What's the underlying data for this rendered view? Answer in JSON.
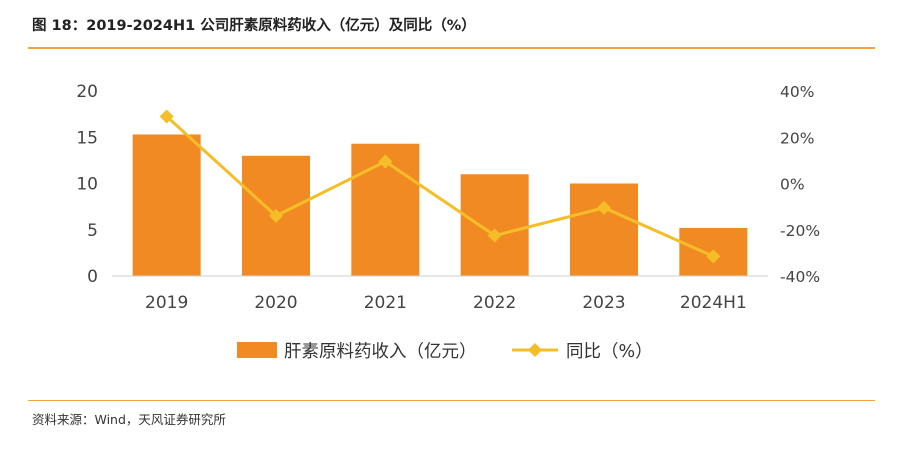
{
  "header": {
    "title": "图 18：2019-2024H1 公司肝素原料药收入（亿元）及同比（%）"
  },
  "footer": {
    "source": "资料来源：Wind，天风证券研究所"
  },
  "colors": {
    "bar": "#f28a23",
    "line": "#f5be28",
    "rule": "#f2a33c"
  },
  "chart_data": {
    "type": "bar",
    "categories": [
      "2019",
      "2020",
      "2021",
      "2022",
      "2023",
      "2024H1"
    ],
    "series": [
      {
        "name": "肝素原料药收入（亿元）",
        "type": "bar",
        "axis": "left",
        "values": [
          15.3,
          13.0,
          14.3,
          11.0,
          10.0,
          5.2
        ]
      },
      {
        "name": "同比（%）",
        "type": "line",
        "axis": "right",
        "values": [
          29,
          -14,
          9.5,
          -22.5,
          -10.5,
          -31.5
        ]
      }
    ],
    "y_left": {
      "ylim": [
        0,
        20
      ],
      "ticks": [
        0,
        5,
        10,
        15,
        20
      ],
      "tick_labels": [
        "0",
        "5",
        "10",
        "15",
        "20"
      ]
    },
    "y_right": {
      "ylim": [
        -40,
        40
      ],
      "ticks": [
        -40,
        -20,
        0,
        20,
        40
      ],
      "tick_labels": [
        "-40%",
        "-20%",
        "0%",
        "20%",
        "40%"
      ]
    },
    "grid": false,
    "legend_position": "bottom"
  }
}
